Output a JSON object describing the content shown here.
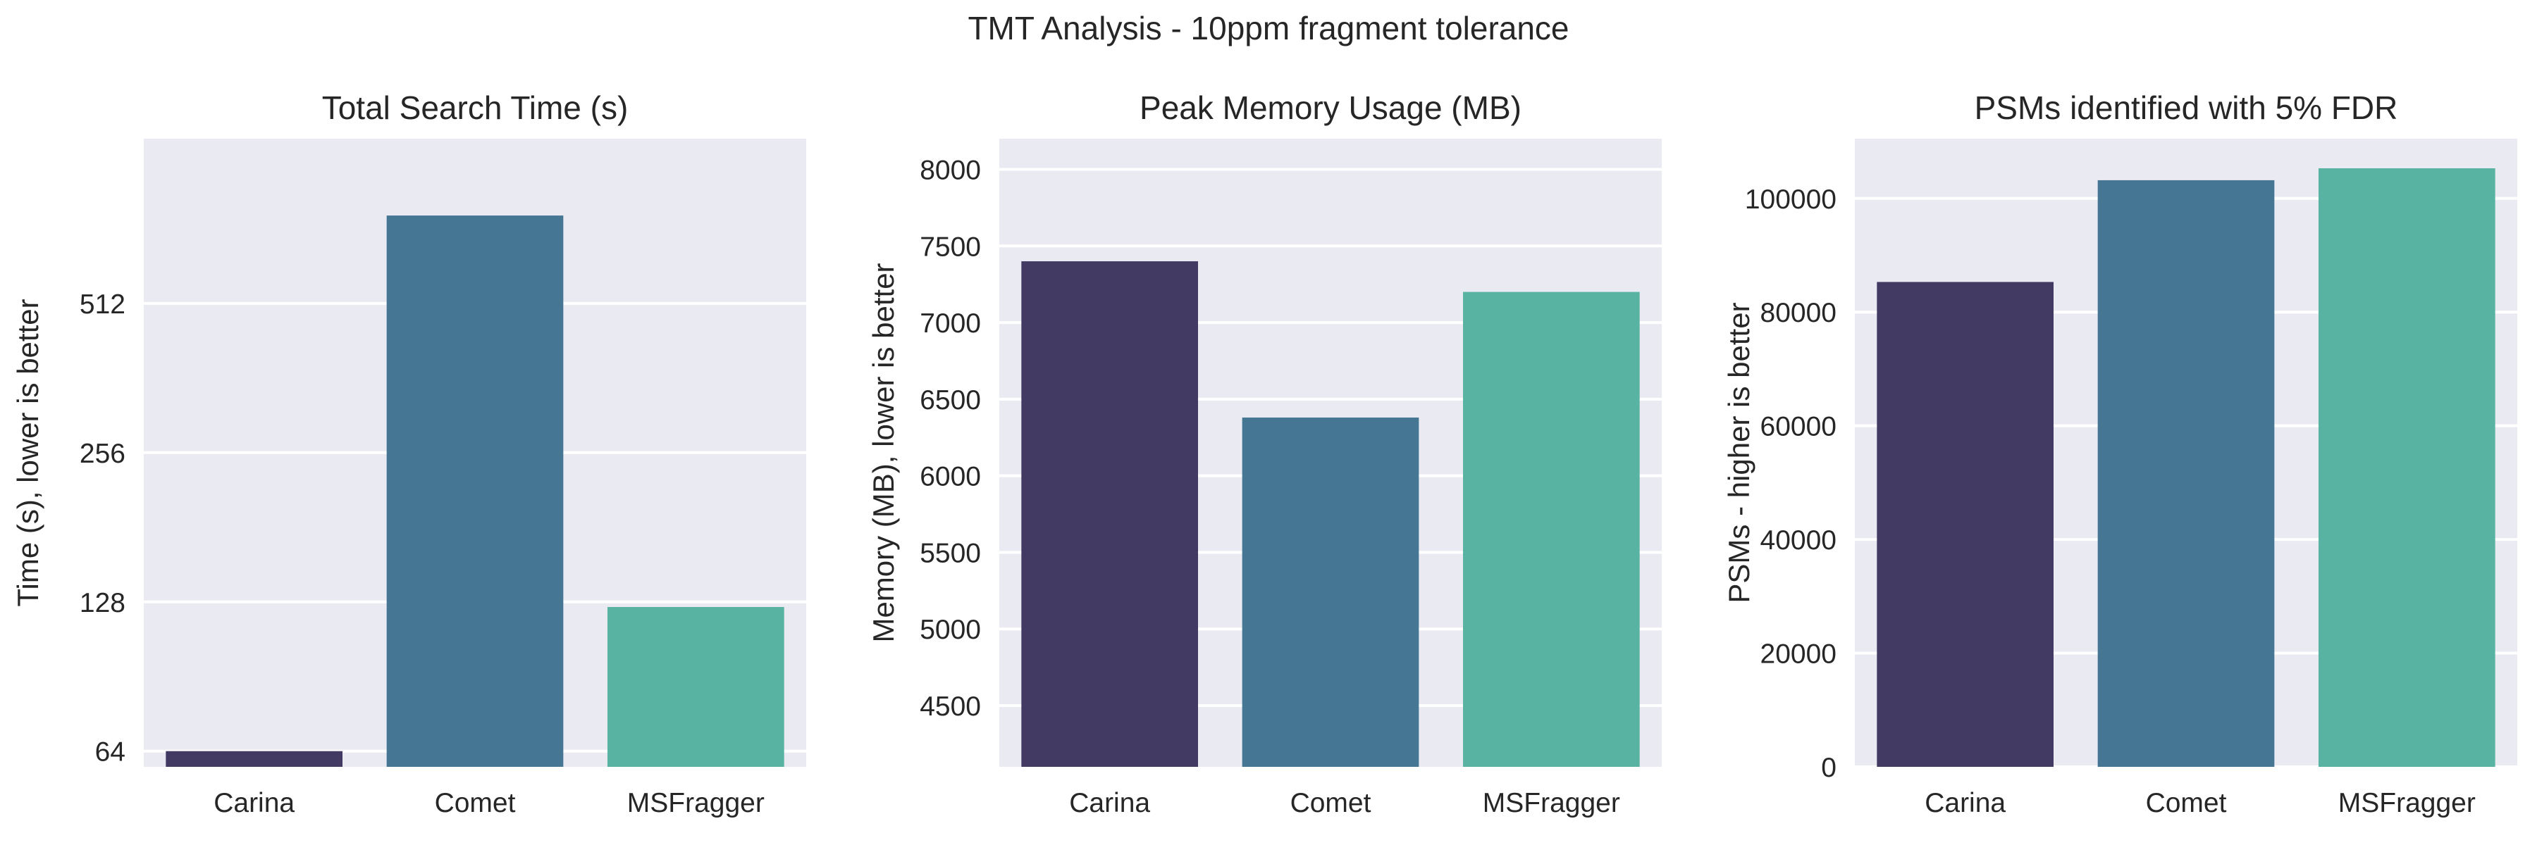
{
  "suptitle": "TMT Analysis - 10ppm fragment tolerance",
  "colors": {
    "panel_bg": "#eaeaf2",
    "grid": "#ffffff",
    "text": "#262626"
  },
  "chart_data": [
    {
      "type": "bar",
      "title": "Total Search Time (s)",
      "ylabel": "Time (s), lower is better",
      "yscale": "log2",
      "categories": [
        "Carina",
        "Comet",
        "MSFragger"
      ],
      "values": [
        64,
        770,
        125
      ],
      "colors": [
        "#433a64",
        "#457795",
        "#58b3a2"
      ],
      "yticks": [
        64,
        128,
        256,
        512
      ],
      "ytick_labels": [
        "64",
        "128",
        "256",
        "512"
      ],
      "ylim": [
        59.5,
        1100
      ],
      "grid": true
    },
    {
      "type": "bar",
      "title": "Peak Memory Usage (MB)",
      "ylabel": "Memory (MB), lower is better",
      "yscale": "linear",
      "categories": [
        "Carina",
        "Comet",
        "MSFragger"
      ],
      "values": [
        7400,
        6380,
        7200
      ],
      "colors": [
        "#433a64",
        "#457795",
        "#58b3a2"
      ],
      "yticks": [
        4500,
        5000,
        5500,
        6000,
        6500,
        7000,
        7500,
        8000
      ],
      "ytick_labels": [
        "4500",
        "5000",
        "5500",
        "6000",
        "6500",
        "7000",
        "7500",
        "8000"
      ],
      "ylim": [
        4100,
        8200
      ],
      "grid": true
    },
    {
      "type": "bar",
      "title": "PSMs identified with 5% FDR",
      "ylabel": "PSMs - higher is better",
      "yscale": "linear",
      "categories": [
        "Carina",
        "Comet",
        "MSFragger"
      ],
      "values": [
        85300,
        103200,
        105300
      ],
      "colors": [
        "#433a64",
        "#457795",
        "#58b3a2"
      ],
      "yticks": [
        0,
        20000,
        40000,
        60000,
        80000,
        100000
      ],
      "ytick_labels": [
        "0",
        "20000",
        "40000",
        "60000",
        "80000",
        "100000"
      ],
      "ylim": [
        0,
        110500
      ],
      "grid": true
    }
  ]
}
